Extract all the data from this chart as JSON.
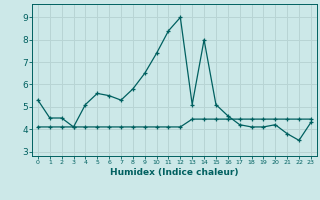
{
  "x": [
    0,
    1,
    2,
    3,
    4,
    5,
    6,
    7,
    8,
    9,
    10,
    11,
    12,
    13,
    14,
    15,
    16,
    17,
    18,
    19,
    20,
    21,
    22,
    23
  ],
  "y_line1": [
    5.3,
    4.5,
    4.5,
    4.1,
    5.1,
    5.6,
    5.5,
    5.3,
    5.8,
    6.5,
    7.4,
    8.4,
    9.0,
    5.1,
    8.0,
    5.1,
    4.6,
    4.2,
    4.1,
    4.1,
    4.2,
    3.8,
    3.5,
    4.3
  ],
  "y_line2": [
    4.1,
    4.1,
    4.1,
    4.1,
    4.1,
    4.1,
    4.1,
    4.1,
    4.1,
    4.1,
    4.1,
    4.1,
    4.1,
    4.45,
    4.45,
    4.45,
    4.45,
    4.45,
    4.45,
    4.45,
    4.45,
    4.45,
    4.45,
    4.45
  ],
  "line_color": "#006060",
  "bg_color": "#cce8e8",
  "grid_color": "#b8d4d4",
  "xlabel": "Humidex (Indice chaleur)",
  "ylim": [
    2.8,
    9.6
  ],
  "xlim": [
    -0.5,
    23.5
  ],
  "yticks": [
    3,
    4,
    5,
    6,
    7,
    8,
    9
  ],
  "xticks": [
    0,
    1,
    2,
    3,
    4,
    5,
    6,
    7,
    8,
    9,
    10,
    11,
    12,
    13,
    14,
    15,
    16,
    17,
    18,
    19,
    20,
    21,
    22,
    23
  ],
  "xtick_labels": [
    "0",
    "1",
    "2",
    "3",
    "4",
    "5",
    "6",
    "7",
    "8",
    "9",
    "10",
    "11",
    "12",
    "13",
    "14",
    "15",
    "16",
    "17",
    "18",
    "19",
    "20",
    "21",
    "22",
    "23"
  ]
}
